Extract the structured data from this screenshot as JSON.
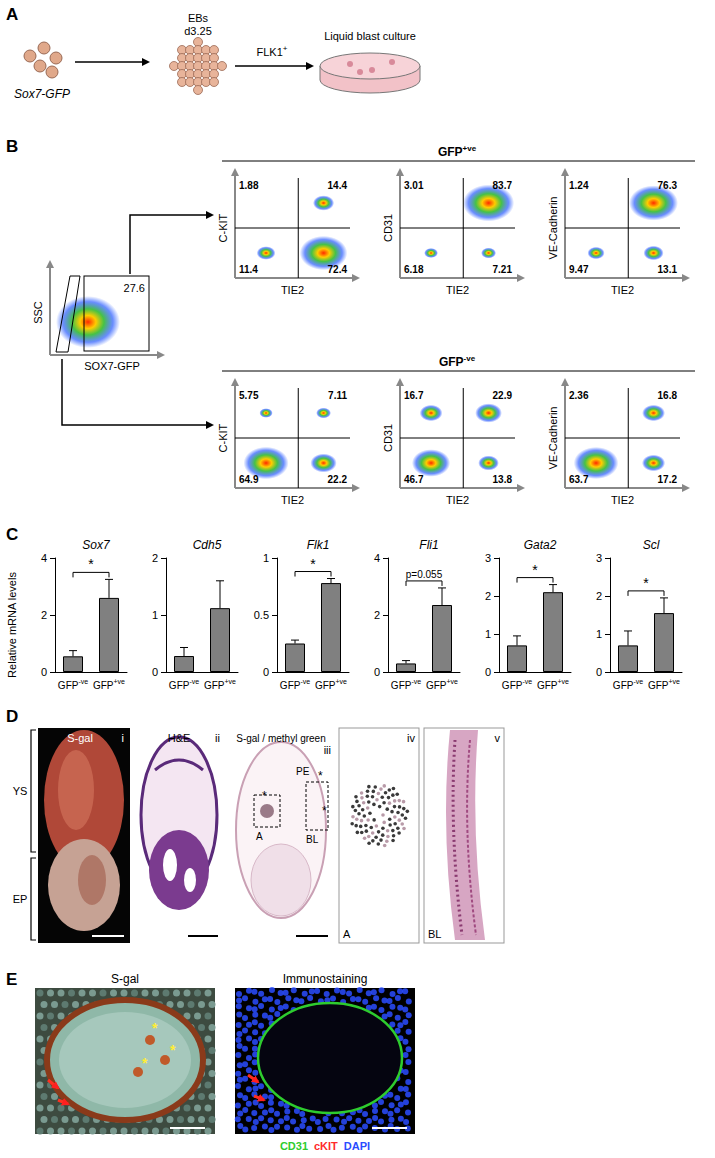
{
  "panels": {
    "A": {
      "label": "A",
      "cells": "Sox7-GFP",
      "embryoid_bodies": [
        "EBs",
        "d3.25"
      ],
      "sort": "FLK1+",
      "culture": "Liquid blast culture"
    },
    "B": {
      "label": "B",
      "gating": {
        "x_label": "SOX7-GFP",
        "y_label": "SSC",
        "gate_value": 27.6
      },
      "x_label": "TIE2",
      "groups": [
        {
          "name": "GFP+ve",
          "plots": [
            {
              "y_label": "C-KIT",
              "quadrants": {
                "upper_left": 1.88,
                "upper_right": 14.4,
                "lower_left": 11.4,
                "lower_right": 72.4
              }
            },
            {
              "y_label": "CD31",
              "quadrants": {
                "upper_left": 3.01,
                "upper_right": 83.7,
                "lower_left": 6.18,
                "lower_right": 7.21
              }
            },
            {
              "y_label": "VE-Cadherin",
              "quadrants": {
                "upper_left": 1.24,
                "upper_right": 76.3,
                "lower_left": 9.47,
                "lower_right": 13.1
              }
            }
          ]
        },
        {
          "name": "GFP-ve",
          "plots": [
            {
              "y_label": "C-KIT",
              "quadrants": {
                "upper_left": 5.75,
                "upper_right": 7.11,
                "lower_left": 64.9,
                "lower_right": 22.2
              }
            },
            {
              "y_label": "CD31",
              "quadrants": {
                "upper_left": 16.7,
                "upper_right": 22.9,
                "lower_left": 46.7,
                "lower_right": 13.8
              }
            },
            {
              "y_label": "VE-Cadherin",
              "quadrants": {
                "upper_left": 2.36,
                "upper_right": 16.8,
                "lower_left": 63.7,
                "lower_right": 17.2
              }
            }
          ]
        }
      ]
    },
    "C": {
      "label": "C",
      "y_label": "Relative mRNA levels"
    },
    "D": {
      "label": "D",
      "regions": [
        "YS",
        "EP"
      ],
      "images": [
        {
          "numeral": "i",
          "title": "S-gal"
        },
        {
          "numeral": "ii",
          "title": "H&E"
        },
        {
          "numeral": "iii",
          "title": "S-gal / methyl green",
          "region": "PE",
          "marks": [
            "*",
            "*",
            "*"
          ],
          "boxes": [
            "A",
            "BL"
          ]
        },
        {
          "numeral": "iv",
          "label": "A"
        },
        {
          "numeral": "v",
          "label": "BL"
        }
      ]
    },
    "E": {
      "label": "E",
      "images": [
        {
          "title": "S-gal",
          "marks": [
            "*",
            "*",
            "*"
          ]
        },
        {
          "title": "Immunostaining"
        }
      ],
      "stains": [
        {
          "name": "CD31",
          "color": "#2ecc2e"
        },
        {
          "name": "cKIT",
          "color": "#ff2a2a"
        },
        {
          "name": "DAPI",
          "color": "#2a4cff"
        }
      ]
    }
  },
  "chart_data": [
    {
      "type": "bar",
      "title": "Sox7",
      "categories": [
        "GFP-ve",
        "GFP+ve"
      ],
      "values": [
        0.55,
        2.6
      ],
      "errors": [
        0.2,
        0.65
      ],
      "color": "#808080",
      "ylim": [
        0,
        4
      ],
      "yticks": [
        0,
        2,
        4
      ],
      "significance": "*"
    },
    {
      "type": "bar",
      "title": "Cdh5",
      "categories": [
        "GFP-ve",
        "GFP+ve"
      ],
      "values": [
        0.28,
        1.12
      ],
      "errors": [
        0.15,
        0.48
      ],
      "color": "#808080",
      "ylim": [
        0,
        2
      ],
      "yticks": [
        0,
        1,
        2
      ]
    },
    {
      "type": "bar",
      "title": "Flk1",
      "categories": [
        "GFP-ve",
        "GFP+ve"
      ],
      "values": [
        0.25,
        0.78
      ],
      "errors": [
        0.03,
        0.04
      ],
      "color": "#808080",
      "ylim": [
        0,
        1
      ],
      "yticks": [
        0,
        0.5,
        1
      ],
      "significance": "*"
    },
    {
      "type": "bar",
      "title": "Fli1",
      "categories": [
        "GFP-ve",
        "GFP+ve"
      ],
      "values": [
        0.3,
        2.35
      ],
      "errors": [
        0.1,
        0.6
      ],
      "color": "#808080",
      "ylim": [
        0,
        4
      ],
      "yticks": [
        0,
        2,
        4
      ],
      "significance": "p=0.055"
    },
    {
      "type": "bar",
      "title": "Gata2",
      "categories": [
        "GFP-ve",
        "GFP+ve"
      ],
      "values": [
        0.7,
        2.1
      ],
      "errors": [
        0.25,
        0.2
      ],
      "color": "#808080",
      "ylim": [
        0,
        3
      ],
      "yticks": [
        0,
        1,
        2,
        3
      ],
      "significance": "*"
    },
    {
      "type": "bar",
      "title": "Scl",
      "categories": [
        "GFP-ve",
        "GFP+ve"
      ],
      "values": [
        0.7,
        1.55
      ],
      "errors": [
        0.38,
        0.4
      ],
      "color": "#808080",
      "ylim": [
        0,
        3
      ],
      "yticks": [
        0,
        1,
        2,
        3
      ],
      "significance": "*"
    }
  ]
}
